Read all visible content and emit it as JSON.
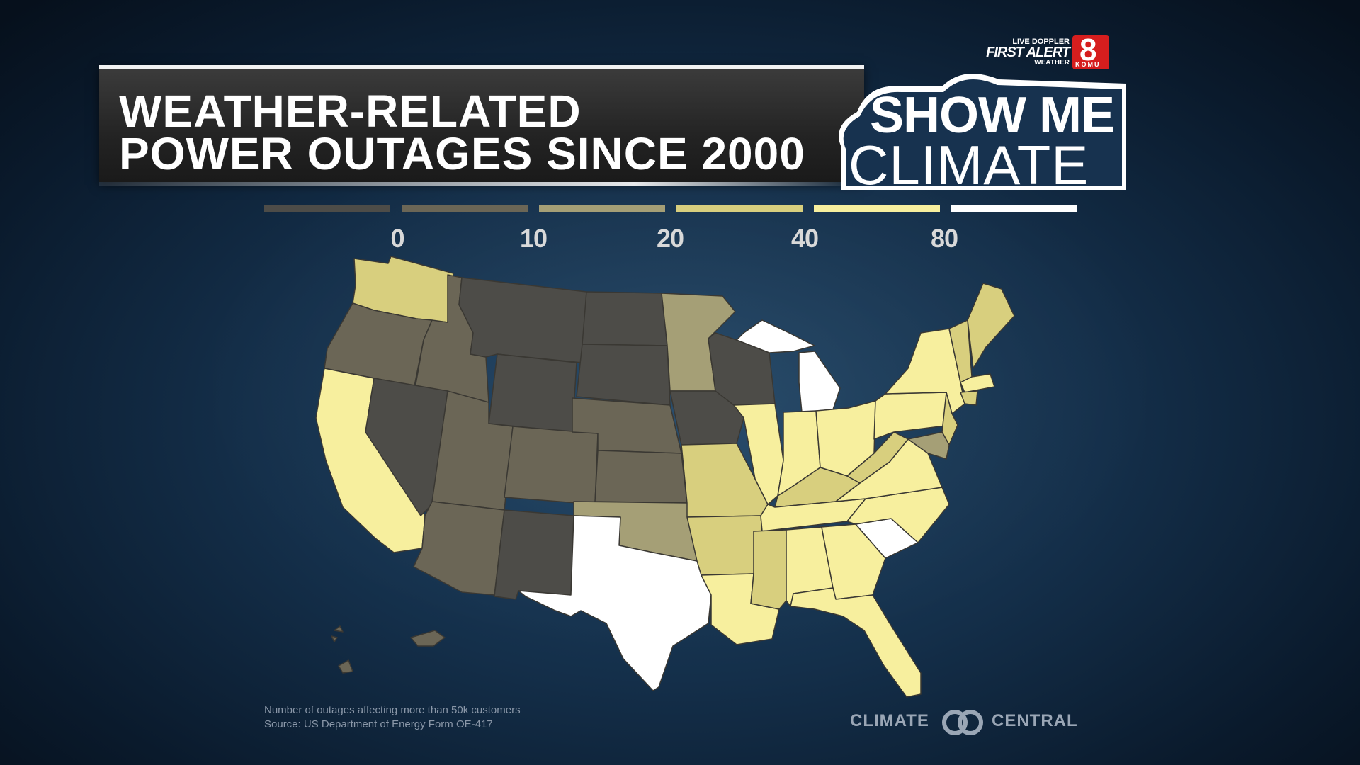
{
  "title": {
    "line1": "WEATHER-RELATED",
    "line2": "POWER OUTAGES SINCE 2000"
  },
  "show_me_climate": {
    "line1": "SHOW ME",
    "line2": "CLIMATE"
  },
  "station": {
    "live_doppler": "LIVE DOPPLER",
    "first_alert": "FIRST ALERT",
    "weather": "WEATHER",
    "channel": "8",
    "call_sign": "KOMU"
  },
  "legend": {
    "ticks": [
      "0",
      "10",
      "20",
      "40",
      "80"
    ],
    "colors": [
      "#4d4c48",
      "#6b6656",
      "#a59f76",
      "#d8cf7e",
      "#f7ef9e",
      "#ffffff"
    ]
  },
  "palette": {
    "bin1": "#4d4c48",
    "bin2": "#6b6656",
    "bin3": "#a59f76",
    "bin4": "#d8cf7e",
    "bin5": "#f7ef9e",
    "bin6": "#ffffff"
  },
  "footnote": {
    "line1": "Number of outages affecting more than 50k customers",
    "line2": "Source: US Department of Energy Form OE-417"
  },
  "branding": {
    "left": "CLIMATE",
    "right": "CENTRAL"
  }
}
